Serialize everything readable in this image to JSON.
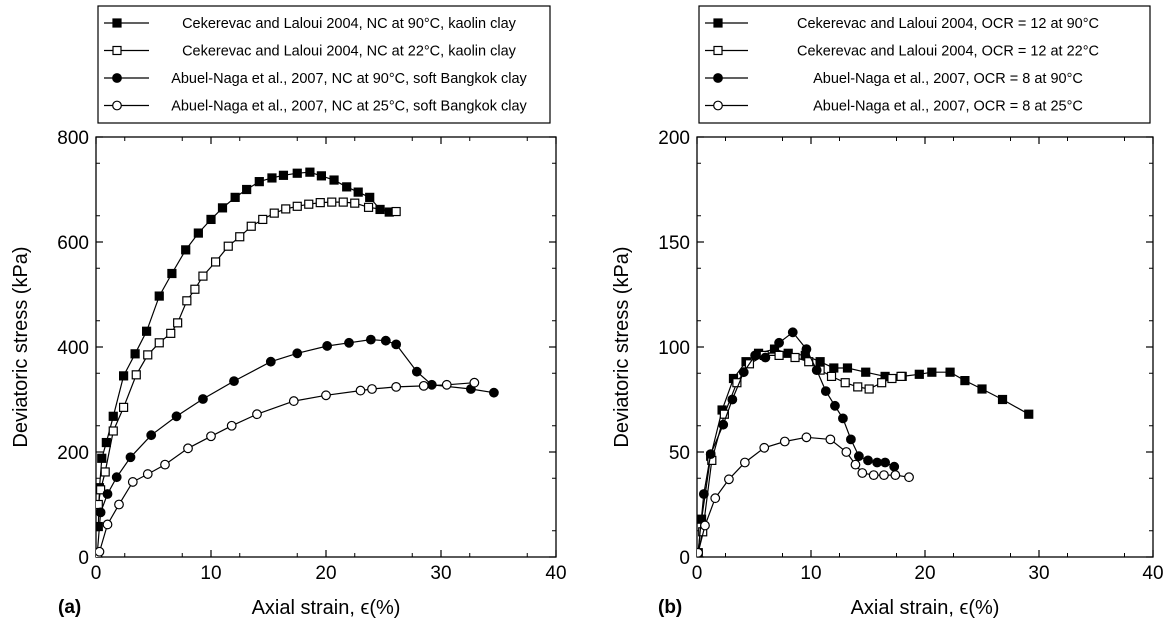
{
  "chart_data": [
    {
      "type": "line",
      "panel_label": "(a)",
      "xlabel": "Axial strain, ϵ(%)",
      "ylabel": "Deviatoric stress (kPa)",
      "xlim": [
        0,
        40
      ],
      "ylim": [
        0,
        800
      ],
      "xticks": [
        "0",
        "10",
        "20",
        "30",
        "40"
      ],
      "yticks": [
        "0",
        "200",
        "400",
        "600",
        "800"
      ],
      "grid": false,
      "legend_position": "top",
      "series": [
        {
          "name": "Cekerevac and Laloui 2004, NC at 90°C, kaolin clay",
          "marker": "square-filled",
          "x": [
            0.2,
            0.3,
            0.5,
            0.9,
            1.5,
            2.4,
            3.4,
            4.4,
            5.5,
            6.6,
            7.8,
            8.9,
            10.0,
            11.0,
            12.1,
            13.1,
            14.2,
            15.3,
            16.3,
            17.5,
            18.6,
            19.6,
            20.7,
            21.8,
            22.8,
            23.8,
            24.7,
            25.5
          ],
          "y": [
            58,
            132,
            188,
            218,
            268,
            345,
            387,
            430,
            497,
            540,
            585,
            617,
            643,
            665,
            685,
            700,
            715,
            722,
            727,
            731,
            733,
            726,
            718,
            705,
            695,
            685,
            662,
            657
          ]
        },
        {
          "name": "Cekerevac and Laloui 2004, NC at 22°C, kaolin clay",
          "marker": "square-open",
          "x": [
            0.2,
            0.4,
            0.8,
            1.5,
            2.4,
            3.5,
            4.5,
            5.5,
            6.5,
            7.1,
            7.9,
            8.6,
            9.3,
            10.4,
            11.5,
            12.5,
            13.5,
            14.5,
            15.5,
            16.5,
            17.5,
            18.5,
            19.5,
            20.5,
            21.5,
            22.5,
            23.7,
            26.1
          ],
          "y": [
            100,
            128,
            162,
            240,
            285,
            347,
            385,
            408,
            426,
            446,
            488,
            510,
            535,
            562,
            592,
            610,
            630,
            643,
            655,
            663,
            668,
            672,
            675,
            676,
            676,
            674,
            666,
            658
          ]
        },
        {
          "name": "Abuel-Naga et al., 2007, NC at 90°C, soft Bangkok clay",
          "marker": "circle-filled",
          "x": [
            0.1,
            0.4,
            1.0,
            1.8,
            3.0,
            4.8,
            7.0,
            9.3,
            12.0,
            15.2,
            17.5,
            20.1,
            22.0,
            23.9,
            25.2,
            26.1,
            27.9,
            29.2,
            32.6,
            34.6
          ],
          "y": [
            5,
            85,
            120,
            152,
            190,
            232,
            268,
            301,
            335,
            372,
            388,
            402,
            408,
            414,
            412,
            405,
            353,
            328,
            320,
            313
          ]
        },
        {
          "name": "Abuel-Naga et al., 2007, NC at 25°C, soft Bangkok clay",
          "marker": "circle-open",
          "x": [
            0.1,
            0.3,
            1.0,
            2.0,
            3.2,
            4.5,
            6.0,
            8.0,
            10.0,
            11.8,
            14.0,
            17.2,
            20.0,
            23.0,
            24.0,
            26.1,
            28.5,
            30.5,
            32.9
          ],
          "y": [
            2,
            10,
            62,
            100,
            143,
            158,
            176,
            207,
            230,
            250,
            272,
            297,
            308,
            317,
            320,
            324,
            326,
            328,
            332
          ]
        }
      ]
    },
    {
      "type": "line",
      "panel_label": "(b)",
      "xlabel": "Axial strain, ϵ(%)",
      "ylabel": "Deviatoric stress (kPa)",
      "xlim": [
        0,
        40
      ],
      "ylim": [
        0,
        200
      ],
      "xticks": [
        "0",
        "10",
        "20",
        "30",
        "40"
      ],
      "yticks": [
        "0",
        "50",
        "100",
        "150",
        "200"
      ],
      "grid": false,
      "legend_position": "top",
      "series": [
        {
          "name": "Cekerevac and Laloui 2004, OCR = 12 at 90°C",
          "marker": "square-filled",
          "x": [
            0.1,
            0.4,
            1.2,
            2.2,
            3.2,
            4.3,
            5.4,
            6.8,
            8.0,
            9.5,
            10.8,
            12.0,
            13.2,
            14.8,
            16.5,
            18.0,
            19.5,
            20.6,
            22.2,
            23.5,
            25.0,
            26.8,
            29.1
          ],
          "y": [
            2,
            18,
            48,
            70,
            85,
            93,
            97,
            99,
            97,
            96,
            93,
            90,
            90,
            88,
            86,
            86,
            87,
            88,
            88,
            84,
            80,
            75,
            68
          ]
        },
        {
          "name": "Cekerevac and Laloui 2004, OCR = 12 at 22°C",
          "marker": "square-open",
          "x": [
            0.1,
            0.5,
            1.3,
            2.4,
            3.5,
            4.6,
            5.9,
            7.2,
            8.6,
            9.8,
            10.8,
            11.8,
            13.0,
            14.1,
            15.1,
            16.2,
            17.1,
            17.9
          ],
          "y": [
            2,
            12,
            46,
            68,
            83,
            92,
            96,
            96,
            95,
            93,
            89,
            86,
            83,
            81,
            80,
            83,
            85,
            86
          ]
        },
        {
          "name": "Abuel-Naga et al., 2007, OCR = 8 at 90°C",
          "marker": "circle-filled",
          "x": [
            0.1,
            0.6,
            1.2,
            2.3,
            3.1,
            4.1,
            5.1,
            6.0,
            7.2,
            8.4,
            9.6,
            10.5,
            11.3,
            12.1,
            12.8,
            13.5,
            14.2,
            15.0,
            15.8,
            16.5,
            17.3
          ],
          "y": [
            2,
            30,
            49,
            63,
            75,
            88,
            96,
            95,
            102,
            107,
            99,
            89,
            79,
            72,
            66,
            56,
            48,
            46,
            45,
            45,
            43
          ],
          "ydraw_note": ""
        },
        {
          "name": "Abuel-Naga et al., 2007, OCR = 8 at 25°C",
          "marker": "circle-open",
          "x": [
            0.1,
            0.7,
            1.6,
            2.8,
            4.2,
            5.9,
            7.7,
            9.6,
            11.7,
            13.1,
            13.9,
            14.5,
            15.5,
            16.4,
            17.4,
            18.6
          ],
          "y": [
            2,
            15,
            28,
            37,
            45,
            52,
            55,
            57,
            56,
            50,
            44,
            40,
            39,
            39,
            39,
            38
          ]
        }
      ]
    }
  ]
}
